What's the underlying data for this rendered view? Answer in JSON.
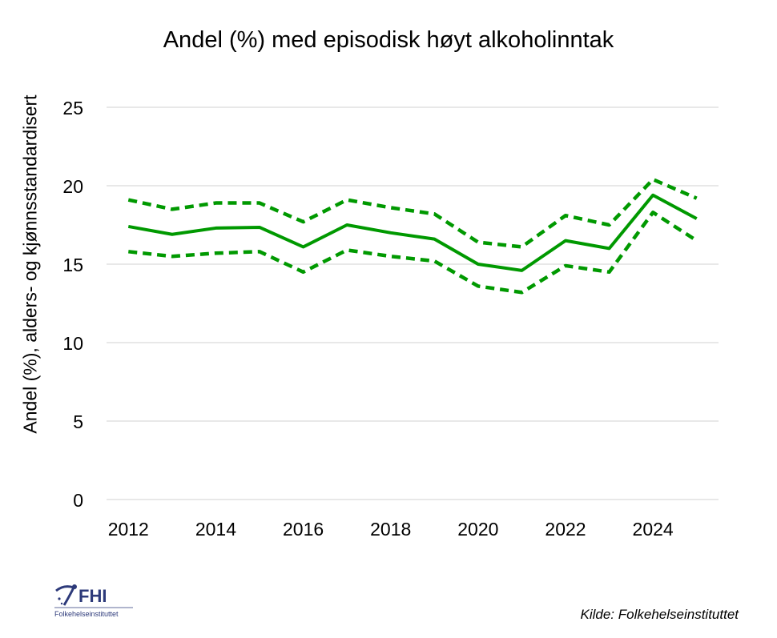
{
  "chart_data": {
    "type": "line",
    "title": "Andel (%) med episodisk høyt alkoholinntak",
    "xlabel": "",
    "ylabel": "Andel (%), alders- og kjønnsstandardisert",
    "x": [
      2012,
      2013,
      2014,
      2015,
      2016,
      2017,
      2018,
      2019,
      2020,
      2021,
      2022,
      2023,
      2024,
      2025
    ],
    "x_tick_labels": [
      "2012",
      "2014",
      "2016",
      "2018",
      "2020",
      "2022",
      "2024"
    ],
    "y_tick_labels": [
      "0",
      "5",
      "10",
      "15",
      "20",
      "25"
    ],
    "ylim": [
      0,
      25
    ],
    "grid": true,
    "legend": "none",
    "series": [
      {
        "style": "solid",
        "color": "#009900",
        "values": [
          17.4,
          16.9,
          17.3,
          17.35,
          16.1,
          17.5,
          17.0,
          16.6,
          15.0,
          14.6,
          16.5,
          16.0,
          19.4,
          17.9
        ]
      },
      {
        "style": "dashed",
        "color": "#009900",
        "values": [
          19.1,
          18.5,
          18.9,
          18.9,
          17.7,
          19.1,
          18.6,
          18.2,
          16.4,
          16.1,
          18.1,
          17.5,
          20.4,
          19.2
        ]
      },
      {
        "style": "dashed",
        "color": "#009900",
        "values": [
          15.8,
          15.5,
          15.7,
          15.8,
          14.5,
          15.9,
          15.5,
          15.2,
          13.6,
          13.2,
          14.9,
          14.5,
          18.3,
          16.5
        ]
      }
    ]
  },
  "source": "Kilde: Folkehelseinstituttet",
  "logo": {
    "text": "FHI",
    "subtext": "Folkehelseinstituttet"
  }
}
